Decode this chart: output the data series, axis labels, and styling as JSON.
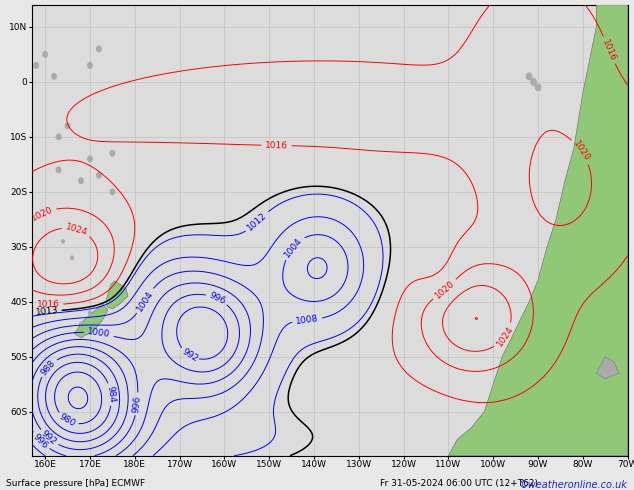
{
  "bottom_label": "Surface pressure [hPa] ECMWF",
  "date_label": "Fr 31-05-2024 06:00 UTC (12+T62)",
  "credit": "©weatheronline.co.uk",
  "figsize": [
    6.34,
    4.9
  ],
  "dpi": 100,
  "lon_min": 157,
  "lon_max": 290,
  "lat_min": -68,
  "lat_max": 14,
  "pressure_color_low": "#0000ff",
  "pressure_color_high": "#ff0000",
  "pressure_color_mid": "#000000",
  "background_color": "#e8e8e8",
  "ocean_color": "#dce8f0",
  "land_color_nz": "#90c878",
  "land_color_sa": "#90c878",
  "land_color_gray": "#aaaaaa",
  "grid_color": "#bbbbbb",
  "label_fontsize": 6.5,
  "axis_label_fontsize": 6.5,
  "credit_fontsize": 7
}
